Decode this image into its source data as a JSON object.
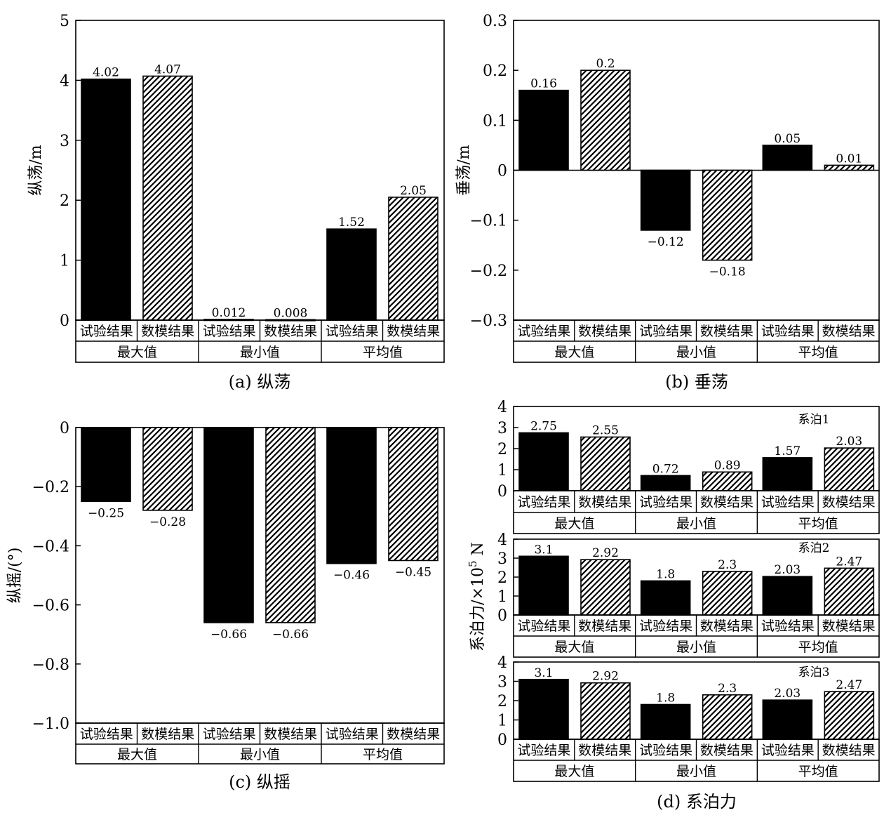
{
  "chart_data": [
    {
      "id": "a",
      "type": "bar",
      "caption": "(a) 纵荡",
      "ylabel": "纵荡/m",
      "ylim": [
        0,
        5
      ],
      "yticks": [
        {
          "v": 0,
          "label": "0"
        },
        {
          "v": 1,
          "label": "1"
        },
        {
          "v": 2,
          "label": "2"
        },
        {
          "v": 3,
          "label": "3"
        },
        {
          "v": 4,
          "label": "4"
        },
        {
          "v": 5,
          "label": "5"
        }
      ],
      "groups": [
        "最大值",
        "最小值",
        "平均值"
      ],
      "series": [
        {
          "name": "试验结果",
          "style": "solid",
          "values": [
            4.02,
            0.012,
            1.52
          ],
          "labels": [
            "4.02",
            "0.012",
            "1.52"
          ]
        },
        {
          "name": "数模结果",
          "style": "hatch",
          "values": [
            4.07,
            0.008,
            2.05
          ],
          "labels": [
            "4.07",
            "0.008",
            "2.05"
          ]
        }
      ]
    },
    {
      "id": "b",
      "type": "bar",
      "caption": "(b) 垂荡",
      "ylabel": "垂荡/m",
      "ylim": [
        -0.3,
        0.3
      ],
      "yticks": [
        {
          "v": -0.3,
          "label": "−0.3"
        },
        {
          "v": -0.2,
          "label": "−0.2"
        },
        {
          "v": -0.1,
          "label": "−0.1"
        },
        {
          "v": 0,
          "label": "0"
        },
        {
          "v": 0.1,
          "label": "0.1"
        },
        {
          "v": 0.2,
          "label": "0.2"
        },
        {
          "v": 0.3,
          "label": "0.3"
        }
      ],
      "groups": [
        "最大值",
        "最小值",
        "平均值"
      ],
      "series": [
        {
          "name": "试验结果",
          "style": "solid",
          "values": [
            0.16,
            -0.12,
            0.05
          ],
          "labels": [
            "0.16",
            "−0.12",
            "0.05"
          ]
        },
        {
          "name": "数模结果",
          "style": "hatch",
          "values": [
            0.2,
            -0.18,
            0.01
          ],
          "labels": [
            "0.2",
            "−0.18",
            "0.01"
          ]
        }
      ]
    },
    {
      "id": "c",
      "type": "bar",
      "caption": "(c) 纵摇",
      "ylabel": "纵摇/(°)",
      "ylim": [
        -1.0,
        0
      ],
      "yticks": [
        {
          "v": -1.0,
          "label": "−1.0"
        },
        {
          "v": -0.8,
          "label": "−0.8"
        },
        {
          "v": -0.6,
          "label": "−0.6"
        },
        {
          "v": -0.4,
          "label": "−0.4"
        },
        {
          "v": -0.2,
          "label": "−0.2"
        },
        {
          "v": 0,
          "label": "0"
        }
      ],
      "groups": [
        "最大值",
        "最小值",
        "平均值"
      ],
      "series": [
        {
          "name": "试验结果",
          "style": "solid",
          "values": [
            -0.25,
            -0.66,
            -0.46
          ],
          "labels": [
            "−0.25",
            "−0.66",
            "−0.46"
          ]
        },
        {
          "name": "数模结果",
          "style": "hatch",
          "values": [
            -0.28,
            -0.66,
            -0.45
          ],
          "labels": [
            "−0.28",
            "−0.66",
            "−0.45"
          ]
        }
      ]
    },
    {
      "id": "d1",
      "type": "bar",
      "caption": "(d) 系泊力",
      "ylabel": "系泊力/×10",
      "ylabel_sup": "5",
      "ylabel_unit": " N",
      "subtitle": "系泊1",
      "ylim": [
        0,
        4
      ],
      "yticks": [
        {
          "v": 0,
          "label": "0"
        },
        {
          "v": 1,
          "label": "1"
        },
        {
          "v": 2,
          "label": "2"
        },
        {
          "v": 3,
          "label": "3"
        },
        {
          "v": 4,
          "label": "4"
        }
      ],
      "groups": [
        "最大值",
        "最小值",
        "平均值"
      ],
      "series": [
        {
          "name": "试验结果",
          "style": "solid",
          "values": [
            2.75,
            0.72,
            1.57
          ],
          "labels": [
            "2.75",
            "0.72",
            "1.57"
          ]
        },
        {
          "name": "数模结果",
          "style": "hatch",
          "values": [
            2.55,
            0.89,
            2.03
          ],
          "labels": [
            "2.55",
            "0.89",
            "2.03"
          ]
        }
      ]
    },
    {
      "id": "d2",
      "type": "bar",
      "subtitle": "系泊2",
      "ylim": [
        0,
        4
      ],
      "yticks": [
        {
          "v": 0,
          "label": "0"
        },
        {
          "v": 1,
          "label": "1"
        },
        {
          "v": 2,
          "label": "2"
        },
        {
          "v": 3,
          "label": "3"
        },
        {
          "v": 4,
          "label": "4"
        }
      ],
      "groups": [
        "最大值",
        "最小值",
        "平均值"
      ],
      "series": [
        {
          "name": "试验结果",
          "style": "solid",
          "values": [
            3.1,
            1.8,
            2.03
          ],
          "labels": [
            "3.1",
            "1.8",
            "2.03"
          ]
        },
        {
          "name": "数模结果",
          "style": "hatch",
          "values": [
            2.92,
            2.3,
            2.47
          ],
          "labels": [
            "2.92",
            "2.3",
            "2.47"
          ]
        }
      ]
    },
    {
      "id": "d3",
      "type": "bar",
      "subtitle": "系泊3",
      "ylim": [
        0,
        4
      ],
      "yticks": [
        {
          "v": 0,
          "label": "0"
        },
        {
          "v": 1,
          "label": "1"
        },
        {
          "v": 2,
          "label": "2"
        },
        {
          "v": 3,
          "label": "3"
        },
        {
          "v": 4,
          "label": "4"
        }
      ],
      "groups": [
        "最大值",
        "最小值",
        "平均值"
      ],
      "series": [
        {
          "name": "试验结果",
          "style": "solid",
          "values": [
            3.1,
            1.8,
            2.03
          ],
          "labels": [
            "3.1",
            "1.8",
            "2.03"
          ]
        },
        {
          "name": "数模结果",
          "style": "hatch",
          "values": [
            2.92,
            2.3,
            2.47
          ],
          "labels": [
            "2.92",
            "2.3",
            "2.47"
          ]
        }
      ]
    }
  ]
}
